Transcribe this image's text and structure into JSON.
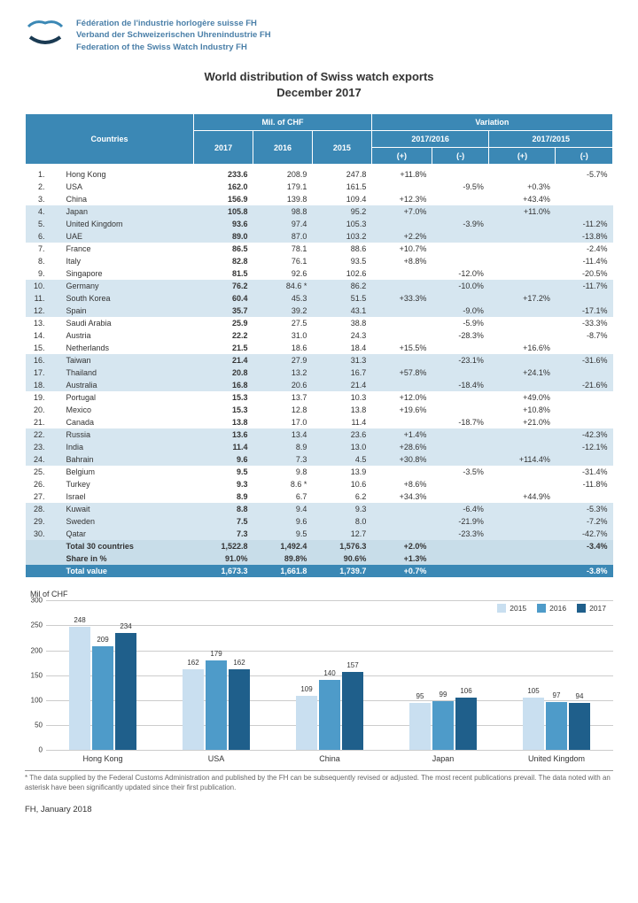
{
  "org": {
    "fr": "Fédération de l'industrie horlogère suisse FH",
    "de": "Verband der Schweizerischen Uhrenindustrie FH",
    "en": "Federation of the Swiss Watch Industry FH"
  },
  "title_line1": "World distribution of Swiss watch exports",
  "title_line2": "December 2017",
  "headers": {
    "countries": "Countries",
    "mil_chf": "Mil. of CHF",
    "variation": "Variation",
    "y2017": "2017",
    "y2016": "2016",
    "y2015": "2015",
    "v1716": "2017/2016",
    "v1715": "2017/2015",
    "plus": "(+)",
    "minus": "(-)"
  },
  "rows": [
    {
      "rank": "1.",
      "name": "Hong Kong",
      "v17": "233.6",
      "v16": "208.9",
      "v15": "247.8",
      "p1": "+11.8%",
      "m1": "",
      "p2": "",
      "m2": "-5.7%"
    },
    {
      "rank": "2.",
      "name": "USA",
      "v17": "162.0",
      "v16": "179.1",
      "v15": "161.5",
      "p1": "",
      "m1": "-9.5%",
      "p2": "+0.3%",
      "m2": ""
    },
    {
      "rank": "3.",
      "name": "China",
      "v17": "156.9",
      "v16": "139.8",
      "v15": "109.4",
      "p1": "+12.3%",
      "m1": "",
      "p2": "+43.4%",
      "m2": ""
    },
    {
      "rank": "4.",
      "name": "Japan",
      "v17": "105.8",
      "v16": "98.8",
      "v15": "95.2",
      "p1": "+7.0%",
      "m1": "",
      "p2": "+11.0%",
      "m2": ""
    },
    {
      "rank": "5.",
      "name": "United Kingdom",
      "v17": "93.6",
      "v16": "97.4",
      "v15": "105.3",
      "p1": "",
      "m1": "-3.9%",
      "p2": "",
      "m2": "-11.2%"
    },
    {
      "rank": "6.",
      "name": "UAE",
      "v17": "89.0",
      "v16": "87.0",
      "v15": "103.2",
      "p1": "+2.2%",
      "m1": "",
      "p2": "",
      "m2": "-13.8%"
    },
    {
      "rank": "7.",
      "name": "France",
      "v17": "86.5",
      "v16": "78.1",
      "v15": "88.6",
      "p1": "+10.7%",
      "m1": "",
      "p2": "",
      "m2": "-2.4%"
    },
    {
      "rank": "8.",
      "name": "Italy",
      "v17": "82.8",
      "v16": "76.1",
      "v15": "93.5",
      "p1": "+8.8%",
      "m1": "",
      "p2": "",
      "m2": "-11.4%"
    },
    {
      "rank": "9.",
      "name": "Singapore",
      "v17": "81.5",
      "v16": "92.6",
      "v15": "102.6",
      "p1": "",
      "m1": "-12.0%",
      "p2": "",
      "m2": "-20.5%"
    },
    {
      "rank": "10.",
      "name": "Germany",
      "v17": "76.2",
      "v16": "84.6 *",
      "v15": "86.2",
      "p1": "",
      "m1": "-10.0%",
      "p2": "",
      "m2": "-11.7%"
    },
    {
      "rank": "11.",
      "name": "South Korea",
      "v17": "60.4",
      "v16": "45.3",
      "v15": "51.5",
      "p1": "+33.3%",
      "m1": "",
      "p2": "+17.2%",
      "m2": ""
    },
    {
      "rank": "12.",
      "name": "Spain",
      "v17": "35.7",
      "v16": "39.2",
      "v15": "43.1",
      "p1": "",
      "m1": "-9.0%",
      "p2": "",
      "m2": "-17.1%"
    },
    {
      "rank": "13.",
      "name": "Saudi Arabia",
      "v17": "25.9",
      "v16": "27.5",
      "v15": "38.8",
      "p1": "",
      "m1": "-5.9%",
      "p2": "",
      "m2": "-33.3%"
    },
    {
      "rank": "14.",
      "name": "Austria",
      "v17": "22.2",
      "v16": "31.0",
      "v15": "24.3",
      "p1": "",
      "m1": "-28.3%",
      "p2": "",
      "m2": "-8.7%"
    },
    {
      "rank": "15.",
      "name": "Netherlands",
      "v17": "21.5",
      "v16": "18.6",
      "v15": "18.4",
      "p1": "+15.5%",
      "m1": "",
      "p2": "+16.6%",
      "m2": ""
    },
    {
      "rank": "16.",
      "name": "Taiwan",
      "v17": "21.4",
      "v16": "27.9",
      "v15": "31.3",
      "p1": "",
      "m1": "-23.1%",
      "p2": "",
      "m2": "-31.6%"
    },
    {
      "rank": "17.",
      "name": "Thailand",
      "v17": "20.8",
      "v16": "13.2",
      "v15": "16.7",
      "p1": "+57.8%",
      "m1": "",
      "p2": "+24.1%",
      "m2": ""
    },
    {
      "rank": "18.",
      "name": "Australia",
      "v17": "16.8",
      "v16": "20.6",
      "v15": "21.4",
      "p1": "",
      "m1": "-18.4%",
      "p2": "",
      "m2": "-21.6%"
    },
    {
      "rank": "19.",
      "name": "Portugal",
      "v17": "15.3",
      "v16": "13.7",
      "v15": "10.3",
      "p1": "+12.0%",
      "m1": "",
      "p2": "+49.0%",
      "m2": ""
    },
    {
      "rank": "20.",
      "name": "Mexico",
      "v17": "15.3",
      "v16": "12.8",
      "v15": "13.8",
      "p1": "+19.6%",
      "m1": "",
      "p2": "+10.8%",
      "m2": ""
    },
    {
      "rank": "21.",
      "name": "Canada",
      "v17": "13.8",
      "v16": "17.0",
      "v15": "11.4",
      "p1": "",
      "m1": "-18.7%",
      "p2": "+21.0%",
      "m2": ""
    },
    {
      "rank": "22.",
      "name": "Russia",
      "v17": "13.6",
      "v16": "13.4",
      "v15": "23.6",
      "p1": "+1.4%",
      "m1": "",
      "p2": "",
      "m2": "-42.3%"
    },
    {
      "rank": "23.",
      "name": "India",
      "v17": "11.4",
      "v16": "8.9",
      "v15": "13.0",
      "p1": "+28.6%",
      "m1": "",
      "p2": "",
      "m2": "-12.1%"
    },
    {
      "rank": "24.",
      "name": "Bahrain",
      "v17": "9.6",
      "v16": "7.3",
      "v15": "4.5",
      "p1": "+30.8%",
      "m1": "",
      "p2": "+114.4%",
      "m2": ""
    },
    {
      "rank": "25.",
      "name": "Belgium",
      "v17": "9.5",
      "v16": "9.8",
      "v15": "13.9",
      "p1": "",
      "m1": "-3.5%",
      "p2": "",
      "m2": "-31.4%"
    },
    {
      "rank": "26.",
      "name": "Turkey",
      "v17": "9.3",
      "v16": "8.6 *",
      "v15": "10.6",
      "p1": "+8.6%",
      "m1": "",
      "p2": "",
      "m2": "-11.8%"
    },
    {
      "rank": "27.",
      "name": "Israel",
      "v17": "8.9",
      "v16": "6.7",
      "v15": "6.2",
      "p1": "+34.3%",
      "m1": "",
      "p2": "+44.9%",
      "m2": ""
    },
    {
      "rank": "28.",
      "name": "Kuwait",
      "v17": "8.8",
      "v16": "9.4",
      "v15": "9.3",
      "p1": "",
      "m1": "-6.4%",
      "p2": "",
      "m2": "-5.3%"
    },
    {
      "rank": "29.",
      "name": "Sweden",
      "v17": "7.5",
      "v16": "9.6",
      "v15": "8.0",
      "p1": "",
      "m1": "-21.9%",
      "p2": "",
      "m2": "-7.2%"
    },
    {
      "rank": "30.",
      "name": "Qatar",
      "v17": "7.3",
      "v16": "9.5",
      "v15": "12.7",
      "p1": "",
      "m1": "-23.3%",
      "p2": "",
      "m2": "-42.7%"
    }
  ],
  "total30": {
    "label": "Total 30 countries",
    "v17": "1,522.8",
    "v16": "1,492.4",
    "v15": "1,576.3",
    "p1": "+2.0%",
    "m1": "",
    "p2": "",
    "m2": "-3.4%"
  },
  "share": {
    "label": "Share in %",
    "v17": "91.0%",
    "v16": "89.8%",
    "v15": "90.6%",
    "p1": "+1.3%",
    "m1": "",
    "p2": "",
    "m2": ""
  },
  "grand": {
    "label": "Total value",
    "v17": "1,673.3",
    "v16": "1,661.8",
    "v15": "1,739.7",
    "p1": "+0.7%",
    "m1": "",
    "p2": "",
    "m2": "-3.8%"
  },
  "chart": {
    "ylabel": "Mil of CHF",
    "ymax": 300,
    "yticks": [
      0,
      50,
      100,
      150,
      200,
      250,
      300
    ],
    "colors": {
      "2015": "#c9dff0",
      "2016": "#4e9bc9",
      "2017": "#1f5f8b"
    },
    "legend": [
      "2015",
      "2016",
      "2017"
    ],
    "groups": [
      {
        "name": "Hong Kong",
        "vals": [
          248,
          209,
          234
        ]
      },
      {
        "name": "USA",
        "vals": [
          162,
          179,
          162
        ]
      },
      {
        "name": "China",
        "vals": [
          109,
          140,
          157
        ]
      },
      {
        "name": "Japan",
        "vals": [
          95,
          99,
          106
        ]
      },
      {
        "name": "United Kingdom",
        "vals": [
          105,
          97,
          94
        ]
      }
    ]
  },
  "footnote": "* The data supplied by the Federal Customs Administration and published by the FH can be subsequently revised or adjusted. The most recent publications prevail. The data noted with an asterisk have been significantly updated since their first publication.",
  "footer": "FH, January 2018"
}
